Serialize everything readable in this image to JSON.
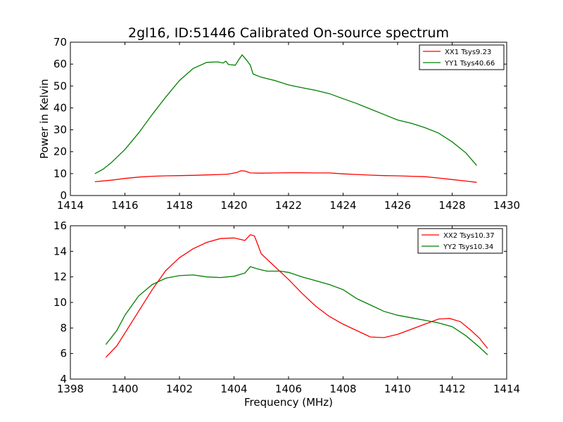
{
  "figure_title": "2gl16, ID:51446 Calibrated On-source spectrum",
  "chart_data": [
    {
      "type": "line",
      "title": "2gl16, ID:51446 Calibrated On-source spectrum",
      "xlabel": "",
      "ylabel": "Power in Kelvin",
      "xlim": [
        1414,
        1430
      ],
      "ylim": [
        0,
        70
      ],
      "xticks": [
        1414,
        1416,
        1418,
        1420,
        1422,
        1424,
        1426,
        1428,
        1430
      ],
      "yticks": [
        0,
        10,
        20,
        30,
        40,
        50,
        60,
        70
      ],
      "legend_position": "top-right",
      "grid": false,
      "series": [
        {
          "name": "XX1 Tsys9.23",
          "color": "#ff0000",
          "points": [
            [
              1414.9,
              6.3
            ],
            [
              1415.5,
              7.0
            ],
            [
              1416.0,
              7.8
            ],
            [
              1416.5,
              8.4
            ],
            [
              1417.0,
              8.8
            ],
            [
              1417.5,
              9.0
            ],
            [
              1418.0,
              9.1
            ],
            [
              1418.5,
              9.2
            ],
            [
              1419.0,
              9.4
            ],
            [
              1419.5,
              9.6
            ],
            [
              1419.8,
              9.8
            ],
            [
              1420.1,
              10.5
            ],
            [
              1420.25,
              11.3
            ],
            [
              1420.4,
              11.2
            ],
            [
              1420.6,
              10.3
            ],
            [
              1421.0,
              10.2
            ],
            [
              1421.5,
              10.3
            ],
            [
              1422.0,
              10.4
            ],
            [
              1422.5,
              10.4
            ],
            [
              1423.0,
              10.3
            ],
            [
              1423.5,
              10.3
            ],
            [
              1424.0,
              9.9
            ],
            [
              1424.5,
              9.6
            ],
            [
              1425.0,
              9.3
            ],
            [
              1425.5,
              9.1
            ],
            [
              1426.0,
              9.0
            ],
            [
              1426.5,
              8.8
            ],
            [
              1427.0,
              8.6
            ],
            [
              1427.5,
              8.0
            ],
            [
              1428.0,
              7.3
            ],
            [
              1428.5,
              6.6
            ],
            [
              1428.9,
              6.0
            ]
          ]
        },
        {
          "name": "YY1 Tsys40.66",
          "color": "#008000",
          "points": [
            [
              1414.9,
              10.0
            ],
            [
              1415.2,
              12.0
            ],
            [
              1415.5,
              15.0
            ],
            [
              1416.0,
              21.0
            ],
            [
              1416.5,
              28.5
            ],
            [
              1417.0,
              37.0
            ],
            [
              1417.5,
              45.0
            ],
            [
              1418.0,
              52.5
            ],
            [
              1418.5,
              58.0
            ],
            [
              1419.0,
              60.8
            ],
            [
              1419.4,
              61.0
            ],
            [
              1419.6,
              60.5
            ],
            [
              1419.7,
              61.3
            ],
            [
              1419.8,
              59.8
            ],
            [
              1420.05,
              59.5
            ],
            [
              1420.2,
              62.5
            ],
            [
              1420.3,
              64.2
            ],
            [
              1420.45,
              62.0
            ],
            [
              1420.6,
              59.5
            ],
            [
              1420.7,
              55.5
            ],
            [
              1421.0,
              54.0
            ],
            [
              1421.5,
              52.5
            ],
            [
              1422.0,
              50.5
            ],
            [
              1422.5,
              49.2
            ],
            [
              1423.0,
              48.0
            ],
            [
              1423.5,
              46.5
            ],
            [
              1424.0,
              44.2
            ],
            [
              1424.5,
              42.0
            ],
            [
              1425.0,
              39.5
            ],
            [
              1425.5,
              37.0
            ],
            [
              1426.0,
              34.5
            ],
            [
              1426.5,
              33.0
            ],
            [
              1427.0,
              31.0
            ],
            [
              1427.5,
              28.5
            ],
            [
              1428.0,
              24.5
            ],
            [
              1428.5,
              19.5
            ],
            [
              1428.9,
              13.7
            ]
          ]
        }
      ]
    },
    {
      "type": "line",
      "title": "",
      "xlabel": "Frequency (MHz)",
      "ylabel": "",
      "xlim": [
        1398,
        1414
      ],
      "ylim": [
        4,
        16
      ],
      "xticks": [
        1398,
        1400,
        1402,
        1404,
        1406,
        1408,
        1410,
        1412,
        1414
      ],
      "yticks": [
        4,
        6,
        8,
        10,
        12,
        14,
        16
      ],
      "legend_position": "top-right",
      "grid": false,
      "series": [
        {
          "name": "XX2 Tsys10.37",
          "color": "#ff0000",
          "points": [
            [
              1399.3,
              5.7
            ],
            [
              1399.7,
              6.6
            ],
            [
              1400.0,
              7.6
            ],
            [
              1400.5,
              9.3
            ],
            [
              1401.0,
              11.0
            ],
            [
              1401.5,
              12.5
            ],
            [
              1402.0,
              13.5
            ],
            [
              1402.5,
              14.2
            ],
            [
              1403.0,
              14.7
            ],
            [
              1403.5,
              15.0
            ],
            [
              1404.0,
              15.05
            ],
            [
              1404.4,
              14.85
            ],
            [
              1404.6,
              15.3
            ],
            [
              1404.75,
              15.2
            ],
            [
              1405.0,
              13.8
            ],
            [
              1405.5,
              12.8
            ],
            [
              1406.0,
              11.8
            ],
            [
              1406.5,
              10.7
            ],
            [
              1407.0,
              9.7
            ],
            [
              1407.5,
              8.9
            ],
            [
              1408.0,
              8.3
            ],
            [
              1408.5,
              7.8
            ],
            [
              1409.0,
              7.3
            ],
            [
              1409.5,
              7.25
            ],
            [
              1410.0,
              7.5
            ],
            [
              1410.5,
              7.9
            ],
            [
              1411.0,
              8.3
            ],
            [
              1411.5,
              8.7
            ],
            [
              1411.9,
              8.75
            ],
            [
              1412.3,
              8.5
            ],
            [
              1412.7,
              7.8
            ],
            [
              1413.0,
              7.2
            ],
            [
              1413.3,
              6.4
            ]
          ]
        },
        {
          "name": "YY2 Tsys10.34",
          "color": "#008000",
          "points": [
            [
              1399.3,
              6.7
            ],
            [
              1399.7,
              7.8
            ],
            [
              1400.0,
              9.0
            ],
            [
              1400.5,
              10.5
            ],
            [
              1401.0,
              11.4
            ],
            [
              1401.5,
              11.9
            ],
            [
              1402.0,
              12.1
            ],
            [
              1402.5,
              12.15
            ],
            [
              1403.0,
              12.0
            ],
            [
              1403.5,
              11.95
            ],
            [
              1404.0,
              12.05
            ],
            [
              1404.4,
              12.3
            ],
            [
              1404.6,
              12.8
            ],
            [
              1404.9,
              12.6
            ],
            [
              1405.2,
              12.45
            ],
            [
              1405.7,
              12.45
            ],
            [
              1406.0,
              12.35
            ],
            [
              1406.5,
              12.0
            ],
            [
              1407.0,
              11.7
            ],
            [
              1407.5,
              11.4
            ],
            [
              1408.0,
              11.0
            ],
            [
              1408.5,
              10.3
            ],
            [
              1409.0,
              9.8
            ],
            [
              1409.5,
              9.3
            ],
            [
              1410.0,
              9.0
            ],
            [
              1410.5,
              8.8
            ],
            [
              1411.0,
              8.6
            ],
            [
              1411.5,
              8.4
            ],
            [
              1412.0,
              8.1
            ],
            [
              1412.5,
              7.4
            ],
            [
              1413.0,
              6.5
            ],
            [
              1413.3,
              5.9
            ]
          ]
        }
      ]
    }
  ]
}
